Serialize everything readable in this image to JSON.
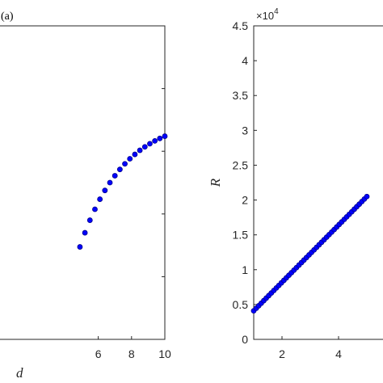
{
  "chart_data": [
    {
      "type": "scatter",
      "panel_label": "(a)",
      "xlabel": "d",
      "ylabel": "",
      "xlim": [
        0,
        10
      ],
      "x_ticks": [
        6,
        8,
        10
      ],
      "x_tick_labels": [
        "6",
        "8",
        "10"
      ],
      "grid": false,
      "marker_color": "#0000ff",
      "marker_edge": "#00008b",
      "series": [
        {
          "x": [
            4.9,
            5.2,
            5.5,
            5.8,
            6.1,
            6.4,
            6.7,
            7.0,
            7.3,
            7.6,
            7.9,
            8.2,
            8.5,
            8.8,
            9.1,
            9.4,
            9.7,
            10.0
          ],
          "y": [
            0.705,
            0.66,
            0.62,
            0.585,
            0.553,
            0.525,
            0.5,
            0.478,
            0.458,
            0.44,
            0.424,
            0.41,
            0.397,
            0.386,
            0.376,
            0.367,
            0.359,
            0.352
          ]
        }
      ]
    },
    {
      "type": "scatter",
      "xlabel": "",
      "ylabel": "R",
      "xlim": [
        1,
        6
      ],
      "ylim": [
        0,
        45000
      ],
      "x_ticks": [
        2,
        4
      ],
      "x_tick_labels": [
        "2",
        "4"
      ],
      "y_ticks": [
        0,
        5000,
        10000,
        15000,
        20000,
        25000,
        30000,
        35000,
        40000,
        45000
      ],
      "y_tick_labels": [
        "0",
        "0.5",
        "1",
        "1.5",
        "2",
        "2.5",
        "3",
        "3.5",
        "4",
        "4.5"
      ],
      "y_exponent_base": "×10",
      "y_exponent_power": "4",
      "grid": false,
      "marker_color": "#0000ff",
      "marker_edge": "#00008b",
      "series": [
        {
          "x_start": 1.0,
          "x_end": 5.0,
          "y_start": 4100,
          "y_end": 20500,
          "points": 46
        }
      ]
    }
  ]
}
